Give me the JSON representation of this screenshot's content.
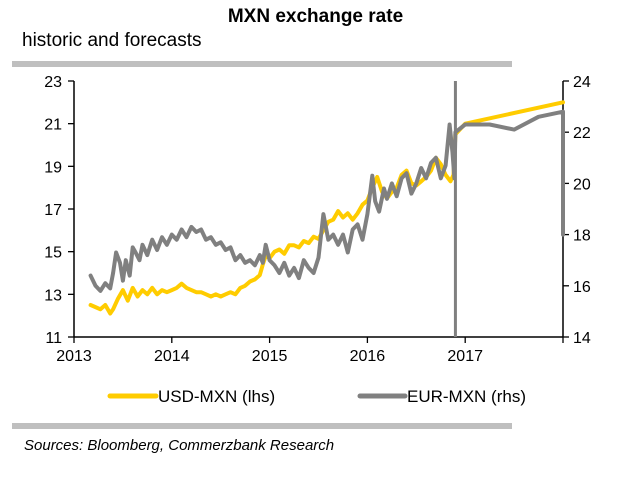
{
  "header": {
    "title": "MXN exchange rate",
    "subtitle": "historic and forecasts"
  },
  "footer": {
    "source": "Sources: Bloomberg, Commerzbank Research"
  },
  "chart_data": {
    "type": "line",
    "title": "MXN exchange rate",
    "subtitle": "historic and forecasts",
    "xlabel": "",
    "ylabel": "",
    "y2label": "",
    "xlim": [
      2013,
      2018
    ],
    "ylim": [
      11,
      23
    ],
    "y2lim": [
      14,
      24
    ],
    "x_ticks": [
      2013,
      2014,
      2015,
      2016,
      2017,
      2018
    ],
    "x_tick_labels": [
      "2013",
      "2014",
      "2015",
      "2016",
      "2017",
      ""
    ],
    "y_ticks": [
      11,
      13,
      15,
      17,
      19,
      21,
      23
    ],
    "y_tick_labels": [
      "11",
      "13",
      "15",
      "17",
      "19",
      "21",
      "23"
    ],
    "y2_ticks": [
      14,
      16,
      18,
      20,
      22,
      24
    ],
    "y2_tick_labels": [
      "14",
      "16",
      "18",
      "20",
      "22",
      "24"
    ],
    "grid": false,
    "legend_position": "bottom",
    "forecast_marker_x": 2016.9,
    "colors": {
      "USD-MXN": "#ffcc00",
      "EUR-MXN": "#808080",
      "forecast_marker": "#808080",
      "axis": "#000000",
      "rule": "#bfbfbf"
    },
    "series": [
      {
        "name": "USD-MXN (lhs)",
        "axis": "left",
        "x": [
          2013.17,
          2013.22,
          2013.27,
          2013.32,
          2013.37,
          2013.4,
          2013.45,
          2013.5,
          2013.55,
          2013.6,
          2013.65,
          2013.7,
          2013.75,
          2013.8,
          2013.85,
          2013.9,
          2013.95,
          2014.0,
          2014.05,
          2014.1,
          2014.15,
          2014.2,
          2014.25,
          2014.3,
          2014.35,
          2014.4,
          2014.45,
          2014.5,
          2014.55,
          2014.6,
          2014.65,
          2014.7,
          2014.75,
          2014.8,
          2014.85,
          2014.9,
          2014.93,
          2014.96,
          2015.0,
          2015.05,
          2015.1,
          2015.15,
          2015.2,
          2015.25,
          2015.3,
          2015.35,
          2015.4,
          2015.45,
          2015.5,
          2015.55,
          2015.6,
          2015.65,
          2015.7,
          2015.75,
          2015.8,
          2015.85,
          2015.9,
          2015.95,
          2016.0,
          2016.05,
          2016.1,
          2016.15,
          2016.2,
          2016.25,
          2016.3,
          2016.35,
          2016.4,
          2016.45,
          2016.5,
          2016.55,
          2016.6,
          2016.65,
          2016.7,
          2016.75,
          2016.8,
          2016.85,
          2016.88,
          2016.9,
          2017.0,
          2018.0
        ],
        "values": [
          12.5,
          12.4,
          12.3,
          12.5,
          12.1,
          12.3,
          12.8,
          13.2,
          12.7,
          13.3,
          12.9,
          13.2,
          13.0,
          13.3,
          13.0,
          13.2,
          13.1,
          13.2,
          13.3,
          13.5,
          13.3,
          13.2,
          13.1,
          13.1,
          13.0,
          12.9,
          13.0,
          12.9,
          13.0,
          13.1,
          13.0,
          13.3,
          13.4,
          13.6,
          13.7,
          13.9,
          14.4,
          14.8,
          14.7,
          15.0,
          15.1,
          14.9,
          15.3,
          15.3,
          15.2,
          15.5,
          15.4,
          15.7,
          15.6,
          16.0,
          16.4,
          16.5,
          16.9,
          16.6,
          16.8,
          16.5,
          16.8,
          17.2,
          17.4,
          18.0,
          18.5,
          17.8,
          17.5,
          17.8,
          18.0,
          18.6,
          18.8,
          18.2,
          18.1,
          18.3,
          18.5,
          18.8,
          19.4,
          19.1,
          18.6,
          18.3,
          18.6,
          20.5,
          21.0,
          22.0
        ]
      },
      {
        "name": "EUR-MXN (rhs)",
        "axis": "right",
        "x": [
          2013.17,
          2013.22,
          2013.27,
          2013.32,
          2013.37,
          2013.4,
          2013.43,
          2013.47,
          2013.5,
          2013.53,
          2013.57,
          2013.6,
          2013.63,
          2013.67,
          2013.7,
          2013.75,
          2013.8,
          2013.85,
          2013.9,
          2013.95,
          2014.0,
          2014.05,
          2014.1,
          2014.15,
          2014.2,
          2014.25,
          2014.3,
          2014.35,
          2014.4,
          2014.45,
          2014.5,
          2014.55,
          2014.6,
          2014.65,
          2014.7,
          2014.75,
          2014.8,
          2014.85,
          2014.9,
          2014.93,
          2014.96,
          2015.0,
          2015.05,
          2015.1,
          2015.15,
          2015.2,
          2015.25,
          2015.3,
          2015.35,
          2015.4,
          2015.45,
          2015.5,
          2015.55,
          2015.6,
          2015.65,
          2015.7,
          2015.75,
          2015.8,
          2015.85,
          2015.9,
          2015.95,
          2016.0,
          2016.05,
          2016.08,
          2016.12,
          2016.17,
          2016.2,
          2016.25,
          2016.3,
          2016.35,
          2016.4,
          2016.45,
          2016.5,
          2016.55,
          2016.6,
          2016.65,
          2016.7,
          2016.75,
          2016.8,
          2016.84,
          2016.87,
          2016.89,
          2016.9,
          2017.0,
          2017.25,
          2017.5,
          2017.75,
          2018.0,
          2018.0
        ],
        "values": [
          16.4,
          16.0,
          15.8,
          16.1,
          15.9,
          16.5,
          17.3,
          16.9,
          16.2,
          17.0,
          16.4,
          17.5,
          17.3,
          17.0,
          17.6,
          17.2,
          17.8,
          17.4,
          17.9,
          17.6,
          18.0,
          17.8,
          18.2,
          17.9,
          18.3,
          18.1,
          18.2,
          17.8,
          17.9,
          17.6,
          17.7,
          17.4,
          17.5,
          17.0,
          17.2,
          16.9,
          17.0,
          16.8,
          17.2,
          16.9,
          17.6,
          17.0,
          16.8,
          16.5,
          16.9,
          16.4,
          16.7,
          16.3,
          17.0,
          16.7,
          16.5,
          17.1,
          18.8,
          17.8,
          18.0,
          17.6,
          18.0,
          17.3,
          18.2,
          18.4,
          17.8,
          18.8,
          20.3,
          19.3,
          18.9,
          19.8,
          19.4,
          20.0,
          19.5,
          20.2,
          20.4,
          19.6,
          20.0,
          20.6,
          20.2,
          20.8,
          21.0,
          20.2,
          20.7,
          22.3,
          21.2,
          20.2,
          22.0,
          22.3,
          22.3,
          22.1,
          22.6,
          22.8,
          18.0
        ]
      }
    ]
  }
}
